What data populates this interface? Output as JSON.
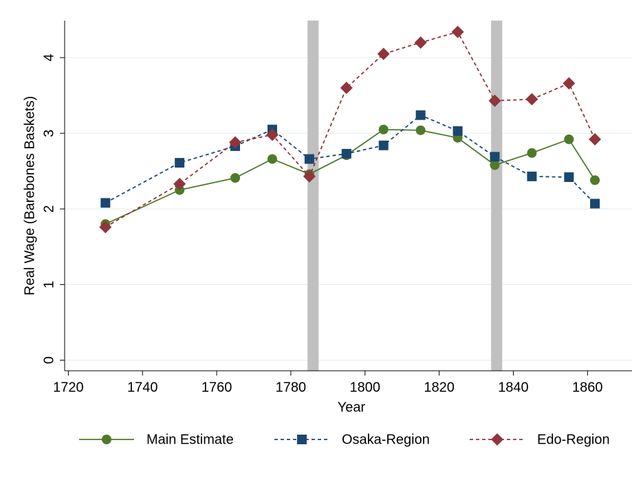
{
  "chart_data": {
    "type": "line",
    "x_label": "Year",
    "y_label": "Real Wage (Barebones Baskets)",
    "x": [
      1730,
      1750,
      1765,
      1775,
      1785,
      1795,
      1805,
      1815,
      1825,
      1835,
      1845,
      1855,
      1862
    ],
    "series": [
      {
        "name": "Main Estimate",
        "color": "#4f7a28",
        "marker": "circle",
        "dashed": false,
        "values": [
          1.8,
          2.25,
          2.41,
          2.66,
          2.46,
          2.71,
          3.05,
          3.04,
          2.94,
          2.58,
          2.74,
          2.92,
          2.38
        ]
      },
      {
        "name": "Osaka-Region",
        "color": "#1a476f",
        "marker": "square",
        "dashed": true,
        "values": [
          2.08,
          2.61,
          2.83,
          3.05,
          2.66,
          2.73,
          2.84,
          3.24,
          3.03,
          2.69,
          2.43,
          2.42,
          2.07
        ]
      },
      {
        "name": "Edo-Region",
        "color": "#90353b",
        "marker": "diamond",
        "dashed": true,
        "values": [
          1.76,
          2.33,
          2.88,
          2.98,
          2.43,
          3.6,
          4.05,
          4.2,
          4.34,
          3.43,
          3.45,
          3.66,
          2.92
        ]
      }
    ],
    "bands": [
      [
        1784.5,
        1787.5
      ],
      [
        1834,
        1837
      ]
    ],
    "band_color": "#c0c0c0",
    "xlim": [
      1719,
      1872
    ],
    "xticks": [
      1720,
      1740,
      1760,
      1780,
      1800,
      1820,
      1840,
      1860
    ],
    "ylim": [
      -0.14,
      4.49
    ],
    "yticks": [
      0,
      1,
      2,
      3,
      4
    ],
    "grid": true,
    "legend": "bottom"
  }
}
